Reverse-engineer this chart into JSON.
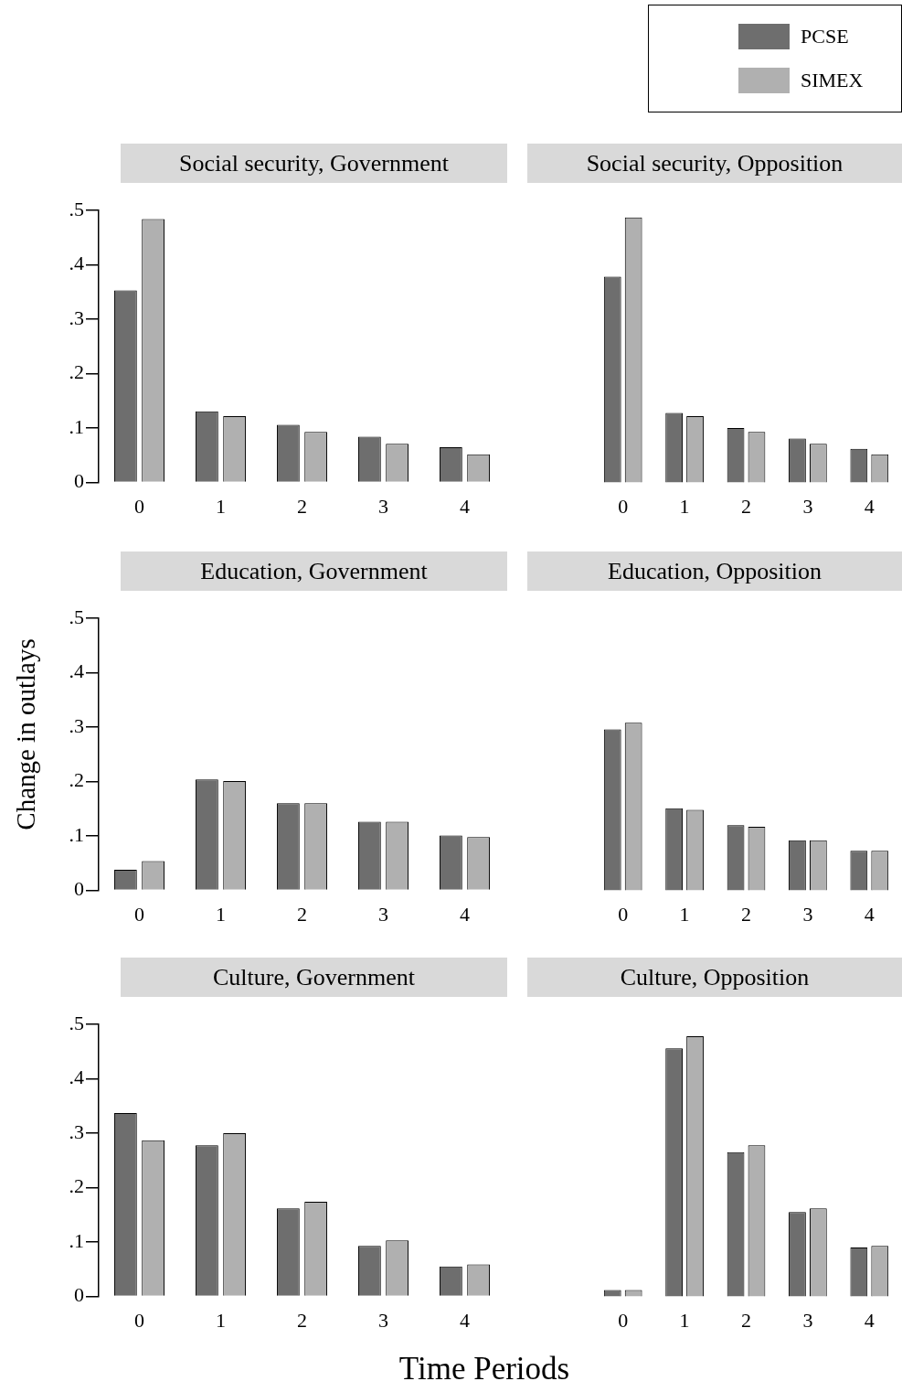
{
  "chart_data": [
    {
      "type": "bar",
      "title": "Social security, Government",
      "categories": [
        "0",
        "1",
        "2",
        "3",
        "4"
      ],
      "series": [
        {
          "color": "#6e6e6e",
          "values": [
            0.353,
            0.131,
            0.106,
            0.084,
            0.065
          ]
        },
        {
          "color": "#b0b0b0",
          "values": [
            0.484,
            0.122,
            0.093,
            0.071,
            0.052
          ]
        }
      ],
      "ylim": [
        0,
        0.5
      ],
      "yticks": [
        {
          "value": 0,
          "label": "0"
        },
        {
          "value": 0.1,
          "label": ".1"
        },
        {
          "value": 0.2,
          "label": ".2"
        },
        {
          "value": 0.3,
          "label": ".3"
        },
        {
          "value": 0.4,
          "label": ".4"
        },
        {
          "value": 0.5,
          "label": ".5"
        }
      ]
    },
    {
      "type": "bar",
      "title": "Social security, Opposition",
      "categories": [
        "0",
        "1",
        "2",
        "3",
        "4"
      ],
      "series": [
        {
          "name": "PCSE",
          "color": "#6e6e6e",
          "values": [
            0.378,
            0.128,
            0.1,
            0.081,
            0.062
          ]
        },
        {
          "name": "SIMEX",
          "color": "#b0b0b0",
          "values": [
            0.487,
            0.122,
            0.093,
            0.071,
            0.052
          ]
        }
      ],
      "ylim": [
        0,
        0.5
      ],
      "tick_labels": "x",
      "legend": "top right"
    },
    {
      "type": "bar",
      "title": "Education, Government",
      "ylabel": "Change in outlays",
      "categories": [
        "0",
        "1",
        "2",
        "3",
        "4"
      ],
      "series": [
        {
          "color": "#6e6e6e",
          "values": [
            0.038,
            0.204,
            0.16,
            0.126,
            0.101
          ]
        },
        {
          "color": "#b0b0b0",
          "values": [
            0.054,
            0.201,
            0.16,
            0.126,
            0.098
          ]
        }
      ],
      "ylim": [
        0,
        0.5
      ],
      "yticks": [
        {
          "value": 0,
          "label": "0"
        },
        {
          "value": 0.1,
          "label": ".1"
        },
        {
          "value": 0.2,
          "label": ".2"
        },
        {
          "value": 0.3,
          "label": ".3"
        },
        {
          "value": 0.4,
          "label": ".4"
        },
        {
          "value": 0.5,
          "label": ".5"
        }
      ]
    },
    {
      "type": "bar",
      "title": "Education, Opposition",
      "categories": [
        "0",
        "1",
        "2",
        "3",
        "4"
      ],
      "series": [
        {
          "color": "#6e6e6e",
          "values": [
            0.296,
            0.151,
            0.12,
            0.092,
            0.073
          ]
        },
        {
          "color": "#b0b0b0",
          "values": [
            0.308,
            0.148,
            0.117,
            0.092,
            0.073
          ]
        }
      ],
      "ylim": [
        0,
        0.5
      ],
      "tick_labels": "x"
    },
    {
      "type": "bar",
      "title": "Culture, Government",
      "xlabel": "Time Periods",
      "categories": [
        "0",
        "1",
        "2",
        "3",
        "4"
      ],
      "series": [
        {
          "color": "#6e6e6e",
          "values": [
            0.337,
            0.278,
            0.162,
            0.093,
            0.055
          ]
        },
        {
          "color": "#b0b0b0",
          "values": [
            0.287,
            0.3,
            0.174,
            0.103,
            0.059
          ]
        }
      ],
      "ylim": [
        0,
        0.5
      ],
      "yticks": [
        {
          "value": 0,
          "label": "0"
        },
        {
          "value": 0.1,
          "label": ".1"
        },
        {
          "value": 0.2,
          "label": ".2"
        },
        {
          "value": 0.3,
          "label": ".3"
        },
        {
          "value": 0.4,
          "label": ".4"
        },
        {
          "value": 0.5,
          "label": ".5"
        }
      ]
    },
    {
      "type": "bar",
      "title": "Culture, Opposition",
      "categories": [
        "0",
        "1",
        "2",
        "3",
        "4"
      ],
      "series": [
        {
          "color": "#6e6e6e",
          "values": [
            0.012,
            0.456,
            0.265,
            0.155,
            0.09
          ]
        },
        {
          "color": "#b0b0b0",
          "values": [
            0.012,
            0.478,
            0.278,
            0.162,
            0.093
          ]
        }
      ],
      "ylim": [
        0,
        0.5
      ],
      "tick_labels": "x"
    }
  ]
}
